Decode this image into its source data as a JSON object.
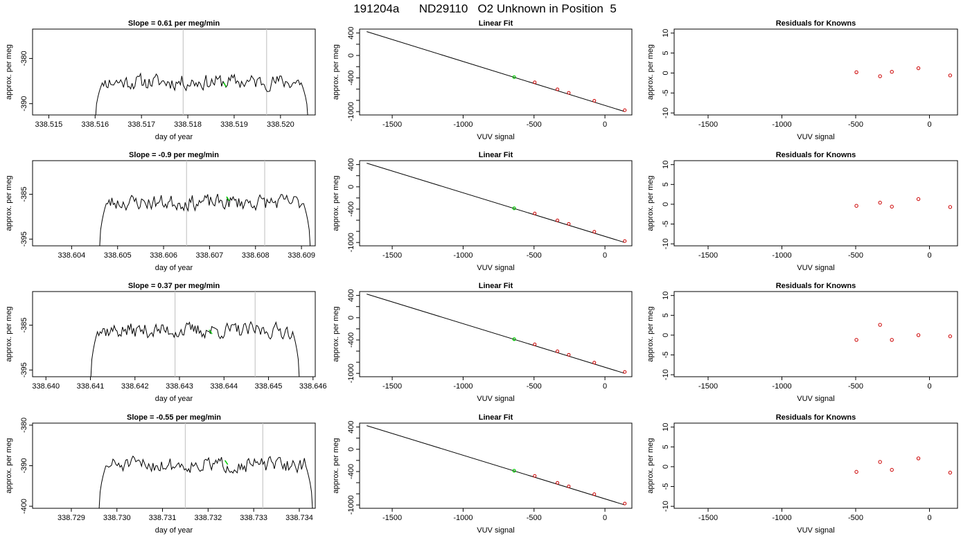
{
  "figure": {
    "title": "191204a      ND29110   O2 Unknown in Position  5"
  },
  "colors": {
    "trace": "#000000",
    "marker_line": "#c8c8c8",
    "highlight": "#00cc00",
    "residual_point": "#cc0000",
    "axis": "#000000"
  },
  "chart_data": [
    {
      "type": "line",
      "row": 0,
      "panel": "trace",
      "title": "Slope =  0.61  per meg/min",
      "xlabel": "day of year",
      "ylabel": "approx. per meg",
      "xlim": [
        338.51465,
        338.52075
      ],
      "ylim": [
        -392.5,
        -373.5
      ],
      "xticks": [
        "338.515",
        "338.516",
        "338.517",
        "338.518",
        "338.519",
        "338.520"
      ],
      "xtick_values": [
        338.515,
        338.516,
        338.517,
        338.518,
        338.519,
        338.52
      ],
      "yticks": [
        "-380",
        "-390"
      ],
      "ytick_values": [
        -380,
        -390
      ],
      "vlines": [
        338.5179,
        338.5197
      ],
      "trace_start": 338.516,
      "trace_end": 338.5206,
      "trace_mean": -385.2,
      "trace_noise": 1.5,
      "trace_seed": 11,
      "highlight": {
        "x": 338.5188,
        "y": -385.8
      }
    },
    {
      "type": "line",
      "row": 1,
      "panel": "trace",
      "title": "Slope =  -0.9  per meg/min",
      "xlabel": "day of year",
      "ylabel": "approx. per meg",
      "xlim": [
        338.60315,
        338.6093
      ],
      "ylim": [
        -396.5,
        -377.5
      ],
      "xticks": [
        "338.604",
        "338.605",
        "338.606",
        "338.607",
        "338.608",
        "338.609"
      ],
      "xtick_values": [
        338.604,
        338.605,
        338.606,
        338.607,
        338.608,
        338.609
      ],
      "yticks": [
        "-385",
        "-395"
      ],
      "ytick_values": [
        -385,
        -395
      ],
      "vlines": [
        338.6065,
        338.6082
      ],
      "trace_start": 338.6046,
      "trace_end": 338.6092,
      "trace_mean": -386.8,
      "trace_noise": 1.5,
      "trace_seed": 23,
      "highlight": {
        "x": 338.6074,
        "y": -386.0
      }
    },
    {
      "type": "line",
      "row": 2,
      "panel": "trace",
      "title": "Slope =  0.37  per meg/min",
      "xlabel": "day of year",
      "ylabel": "approx. per meg",
      "xlim": [
        338.6397,
        338.64605
      ],
      "ylim": [
        -396.5,
        -377.5
      ],
      "xticks": [
        "338.640",
        "338.641",
        "338.642",
        "338.643",
        "338.644",
        "338.645",
        "338.646"
      ],
      "xtick_values": [
        338.64,
        338.641,
        338.642,
        338.643,
        338.644,
        338.645,
        338.646
      ],
      "yticks": [
        "-385",
        "-395"
      ],
      "ytick_values": [
        -385,
        -395
      ],
      "vlines": [
        338.6429,
        338.6447
      ],
      "trace_start": 338.641,
      "trace_end": 338.6457,
      "trace_mean": -386.2,
      "trace_noise": 1.5,
      "trace_seed": 37,
      "highlight": {
        "x": 338.6437,
        "y": -386.5
      }
    },
    {
      "type": "line",
      "row": 3,
      "panel": "trace",
      "title": "Slope =  -0.55  per meg/min",
      "xlabel": "day of year",
      "ylabel": "approx. per meg",
      "xlim": [
        338.72815,
        338.73435
      ],
      "ylim": [
        -400.5,
        -379.5
      ],
      "xticks": [
        "338.729",
        "338.730",
        "338.731",
        "338.732",
        "338.733",
        "338.734"
      ],
      "xtick_values": [
        338.729,
        338.73,
        338.731,
        338.732,
        338.733,
        338.734
      ],
      "yticks": [
        "-380",
        "-390",
        "-400"
      ],
      "ytick_values": [
        -380,
        -390,
        -400
      ],
      "vlines": [
        338.7315,
        338.7332
      ],
      "trace_start": 338.7296,
      "trace_end": 338.7343,
      "trace_mean": -389.8,
      "trace_noise": 1.6,
      "trace_seed": 51,
      "highlight": {
        "x": 338.7324,
        "y": -389.2
      }
    },
    {
      "type": "scatter",
      "row": 0,
      "panel": "fit",
      "title": "Linear Fit",
      "xlabel": "VUV signal",
      "ylabel": "approx. per meg",
      "xlim": [
        -1730,
        190
      ],
      "ylim": [
        -1060,
        470
      ],
      "xticks": [
        "-1500",
        "-1000",
        "-500",
        "0"
      ],
      "xtick_values": [
        -1500,
        -1000,
        -500,
        0
      ],
      "yticks": [
        "400",
        "0",
        "-400",
        "-1000"
      ],
      "ytick_values": [
        400,
        0,
        -400,
        -1000
      ],
      "minor_yticks": [
        200,
        -200,
        -600,
        -800
      ],
      "line": {
        "x": [
          -1680,
          140
        ],
        "y": [
          425,
          -1000
        ]
      },
      "points": {
        "x": [
          -495,
          -335,
          -255,
          -75,
          140
        ],
        "y": [
          -478,
          -603,
          -666,
          -807,
          -975
        ]
      },
      "highlight": {
        "x": -640,
        "y": -385
      }
    },
    {
      "type": "scatter",
      "row": 1,
      "panel": "fit",
      "title": "Linear Fit",
      "xlabel": "VUV signal",
      "ylabel": "approx. per meg",
      "xlim": [
        -1730,
        190
      ],
      "ylim": [
        -1060,
        470
      ],
      "xticks": [
        "-1500",
        "-1000",
        "-500",
        "0"
      ],
      "xtick_values": [
        -1500,
        -1000,
        -500,
        0
      ],
      "yticks": [
        "400",
        "0",
        "-400",
        "-1000"
      ],
      "ytick_values": [
        400,
        0,
        -400,
        -1000
      ],
      "minor_yticks": [
        200,
        -200,
        -600,
        -800
      ],
      "line": {
        "x": [
          -1680,
          140
        ],
        "y": [
          425,
          -1000
        ]
      },
      "points": {
        "x": [
          -495,
          -335,
          -255,
          -75,
          140
        ],
        "y": [
          -478,
          -603,
          -666,
          -807,
          -975
        ]
      },
      "highlight": {
        "x": -640,
        "y": -385
      }
    },
    {
      "type": "scatter",
      "row": 2,
      "panel": "fit",
      "title": "Linear Fit",
      "xlabel": "VUV signal",
      "ylabel": "approx. per meg",
      "xlim": [
        -1730,
        190
      ],
      "ylim": [
        -1060,
        470
      ],
      "xticks": [
        "-1500",
        "-1000",
        "-500",
        "0"
      ],
      "xtick_values": [
        -1500,
        -1000,
        -500,
        0
      ],
      "yticks": [
        "400",
        "0",
        "-400",
        "-1000"
      ],
      "ytick_values": [
        400,
        0,
        -400,
        -1000
      ],
      "minor_yticks": [
        200,
        -200,
        -600,
        -800
      ],
      "line": {
        "x": [
          -1680,
          140
        ],
        "y": [
          425,
          -1000
        ]
      },
      "points": {
        "x": [
          -495,
          -335,
          -255,
          -75,
          140
        ],
        "y": [
          -478,
          -603,
          -666,
          -807,
          -975
        ]
      },
      "highlight": {
        "x": -640,
        "y": -385
      }
    },
    {
      "type": "scatter",
      "row": 3,
      "panel": "fit",
      "title": "Linear Fit",
      "xlabel": "VUV signal",
      "ylabel": "approx. per meg",
      "xlim": [
        -1730,
        190
      ],
      "ylim": [
        -1060,
        470
      ],
      "xticks": [
        "-1500",
        "-1000",
        "-500",
        "0"
      ],
      "xtick_values": [
        -1500,
        -1000,
        -500,
        0
      ],
      "yticks": [
        "400",
        "0",
        "-400",
        "-1000"
      ],
      "ytick_values": [
        400,
        0,
        -400,
        -1000
      ],
      "minor_yticks": [
        200,
        -200,
        -600,
        -800
      ],
      "line": {
        "x": [
          -1680,
          140
        ],
        "y": [
          425,
          -1000
        ]
      },
      "points": {
        "x": [
          -495,
          -335,
          -255,
          -75,
          140
        ],
        "y": [
          -478,
          -603,
          -666,
          -807,
          -975
        ]
      },
      "highlight": {
        "x": -640,
        "y": -385
      }
    },
    {
      "type": "scatter",
      "row": 0,
      "panel": "resid",
      "title": "Residuals for Knowns",
      "xlabel": "VUV signal",
      "ylabel": "approx. per meg",
      "xlim": [
        -1730,
        190
      ],
      "ylim": [
        -10.5,
        11
      ],
      "xticks": [
        "-1500",
        "-1000",
        "-500",
        "0"
      ],
      "xtick_values": [
        -1500,
        -1000,
        -500,
        0
      ],
      "yticks": [
        "10",
        "5",
        "0",
        "-5",
        "-10"
      ],
      "ytick_values": [
        10,
        5,
        0,
        -5,
        -10
      ],
      "points": {
        "x": [
          -495,
          -335,
          -255,
          -75,
          140
        ],
        "y": [
          0.2,
          -0.8,
          0.3,
          1.2,
          -0.6
        ]
      }
    },
    {
      "type": "scatter",
      "row": 1,
      "panel": "resid",
      "title": "Residuals for Knowns",
      "xlabel": "VUV signal",
      "ylabel": "approx. per meg",
      "xlim": [
        -1730,
        190
      ],
      "ylim": [
        -10.5,
        11
      ],
      "xticks": [
        "-1500",
        "-1000",
        "-500",
        "0"
      ],
      "xtick_values": [
        -1500,
        -1000,
        -500,
        0
      ],
      "yticks": [
        "10",
        "5",
        "0",
        "-5",
        "-10"
      ],
      "ytick_values": [
        10,
        5,
        0,
        -5,
        -10
      ],
      "points": {
        "x": [
          -495,
          -335,
          -255,
          -75,
          140
        ],
        "y": [
          -0.4,
          0.4,
          -0.6,
          1.3,
          -0.7
        ]
      }
    },
    {
      "type": "scatter",
      "row": 2,
      "panel": "resid",
      "title": "Residuals for Knowns",
      "xlabel": "VUV signal",
      "ylabel": "approx. per meg",
      "xlim": [
        -1730,
        190
      ],
      "ylim": [
        -10.5,
        11
      ],
      "xticks": [
        "-1500",
        "-1000",
        "-500",
        "0"
      ],
      "xtick_values": [
        -1500,
        -1000,
        -500,
        0
      ],
      "yticks": [
        "10",
        "5",
        "0",
        "-5",
        "-10"
      ],
      "ytick_values": [
        10,
        5,
        0,
        -5,
        -10
      ],
      "points": {
        "x": [
          -495,
          -335,
          -255,
          -75,
          140
        ],
        "y": [
          -1.2,
          2.6,
          -1.2,
          0.0,
          -0.3
        ]
      }
    },
    {
      "type": "scatter",
      "row": 3,
      "panel": "resid",
      "title": "Residuals for Knowns",
      "xlabel": "VUV signal",
      "ylabel": "approx. per meg",
      "xlim": [
        -1730,
        190
      ],
      "ylim": [
        -10.5,
        11
      ],
      "xticks": [
        "-1500",
        "-1000",
        "-500",
        "0"
      ],
      "xtick_values": [
        -1500,
        -1000,
        -500,
        0
      ],
      "yticks": [
        "10",
        "5",
        "0",
        "-5",
        "-10"
      ],
      "ytick_values": [
        10,
        5,
        0,
        -5,
        -10
      ],
      "points": {
        "x": [
          -495,
          -335,
          -255,
          -75,
          140
        ],
        "y": [
          -1.3,
          1.2,
          -0.8,
          2.1,
          -1.5
        ]
      }
    }
  ]
}
